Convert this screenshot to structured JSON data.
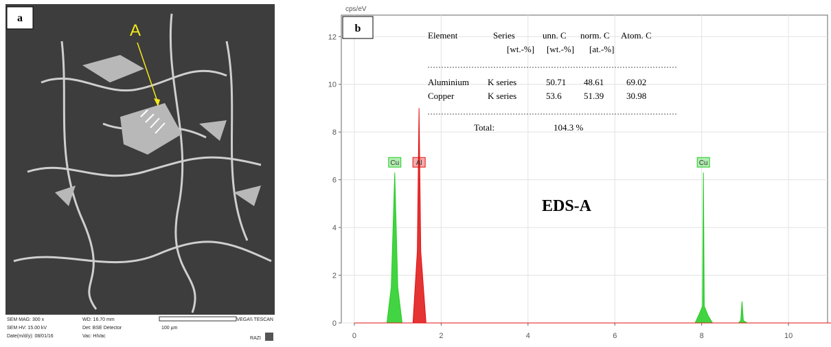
{
  "panel_a": {
    "label": "a",
    "marker": "A",
    "footer": {
      "mag": "SEM MAG: 300 x",
      "hv": "SEM HV: 15.00 kV",
      "date": "Date(m/d/y): 08/01/16",
      "wd": "WD: 16.70 mm",
      "det": "Det: BSE Detector",
      "vac": "Vac: HiVac",
      "scale": "100 µm",
      "brand": "VEGA\\\\ TESCAN",
      "lab": "RAZI"
    }
  },
  "chart_data": {
    "type": "area",
    "panel_label": "b",
    "y_unit": "cps/eV",
    "annotation": "EDS-A",
    "x": [
      0,
      0.75,
      0.85,
      0.93,
      1.0,
      1.1,
      1.35,
      1.45,
      1.49,
      1.53,
      1.65,
      7.85,
      7.95,
      8.02,
      8.04,
      8.06,
      8.15,
      8.25,
      8.85,
      8.9,
      8.93,
      8.96,
      9.05,
      11
    ],
    "series": [
      {
        "name": "Cu",
        "color": "#22cc22",
        "values": [
          0,
          0,
          1.5,
          6.3,
          1.5,
          0,
          0,
          0,
          0,
          0,
          0,
          0,
          0.4,
          0.7,
          6.3,
          0.7,
          0.3,
          0,
          0,
          0.1,
          0.9,
          0.1,
          0,
          0
        ]
      },
      {
        "name": "Al",
        "color": "#e01010",
        "values": [
          0,
          0,
          0,
          0,
          0,
          0,
          0,
          3,
          9,
          3,
          0,
          0,
          0,
          0,
          0,
          0,
          0,
          0,
          0,
          0,
          0,
          0,
          0,
          0
        ]
      }
    ],
    "peak_labels": [
      {
        "label": "Cu",
        "x": 0.93,
        "series": 0
      },
      {
        "label": "Al",
        "x": 1.49,
        "series": 1
      },
      {
        "label": "Cu",
        "x": 8.04,
        "series": 0
      }
    ],
    "xlim": [
      -0.3,
      10.9
    ],
    "xticks": [
      0,
      2,
      4,
      6,
      8,
      10
    ],
    "ylim": [
      0,
      12.9
    ],
    "yticks": [
      0,
      2,
      4,
      6,
      8,
      10,
      12
    ],
    "grid": true,
    "table": {
      "header": [
        "Element",
        "Series",
        "unn. C",
        "norm. C",
        "Atom. C"
      ],
      "units": [
        "[wt.-%]",
        "[wt.-%]",
        "[at.-%]"
      ],
      "rows": [
        [
          "Aluminium",
          "K series",
          50.71,
          48.61,
          69.02
        ],
        [
          "Copper",
          "K series",
          53.6,
          51.39,
          30.98
        ]
      ],
      "total_label": "Total:",
      "total": "104.3 %"
    }
  }
}
